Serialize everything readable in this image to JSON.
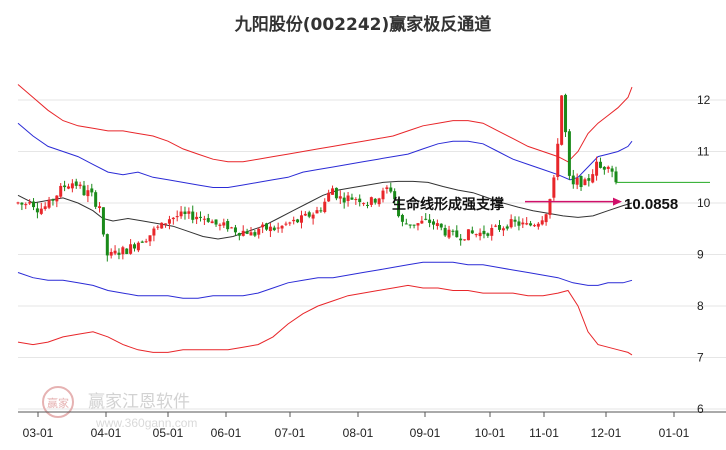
{
  "chart_data": {
    "type": "candlestick",
    "title": "九阳股份(002242)赢家极反通道",
    "x_tick_labels": [
      "03-01",
      "04-01",
      "05-01",
      "06-01",
      "07-01",
      "08-01",
      "09-01",
      "10-01",
      "11-01",
      "12-01",
      "01-01"
    ],
    "y_tick_labels": [
      "12",
      "11",
      "10",
      "9",
      "8",
      "7",
      "6"
    ],
    "ylim": [
      6,
      12.6
    ],
    "annotation": {
      "label": "生命线形成强支撑",
      "value": "10.0858",
      "value_num": 10.0858
    },
    "colors": {
      "up": "#e8262a",
      "down": "#1a8a1a",
      "mid_line": "#333333",
      "inner_band": "#2b2bd6",
      "outer_band": "#e8262a",
      "arrow": "#d0106a",
      "flat_line": "#22aa22"
    },
    "watermark": {
      "name": "赢家江恩软件",
      "url": "www.360gann.com",
      "seal": "赢家"
    },
    "grid": true,
    "legend": "none",
    "mid_line": [
      [
        0,
        10.15
      ],
      [
        15,
        10.0
      ],
      [
        30,
        10.05
      ],
      [
        45,
        10.1
      ],
      [
        60,
        10.0
      ],
      [
        75,
        9.85
      ],
      [
        85,
        9.7
      ],
      [
        95,
        9.65
      ],
      [
        110,
        9.7
      ],
      [
        125,
        9.65
      ],
      [
        140,
        9.6
      ],
      [
        155,
        9.55
      ],
      [
        170,
        9.45
      ],
      [
        185,
        9.35
      ],
      [
        200,
        9.3
      ],
      [
        215,
        9.35
      ],
      [
        230,
        9.45
      ],
      [
        245,
        9.55
      ],
      [
        260,
        9.7
      ],
      [
        275,
        9.85
      ],
      [
        290,
        10.0
      ],
      [
        305,
        10.15
      ],
      [
        320,
        10.25
      ],
      [
        335,
        10.3
      ],
      [
        350,
        10.35
      ],
      [
        365,
        10.4
      ],
      [
        380,
        10.42
      ],
      [
        395,
        10.42
      ],
      [
        410,
        10.4
      ],
      [
        425,
        10.32
      ],
      [
        440,
        10.25
      ],
      [
        455,
        10.2
      ],
      [
        470,
        10.1
      ],
      [
        485,
        10.0
      ],
      [
        500,
        9.92
      ],
      [
        515,
        9.85
      ],
      [
        530,
        9.8
      ],
      [
        545,
        9.75
      ],
      [
        560,
        9.72
      ],
      [
        575,
        9.75
      ],
      [
        590,
        9.85
      ],
      [
        605,
        9.95
      ],
      [
        614,
        10.0
      ]
    ],
    "inner_upper": [
      [
        0,
        11.55
      ],
      [
        15,
        11.3
      ],
      [
        30,
        11.1
      ],
      [
        45,
        11.0
      ],
      [
        60,
        10.9
      ],
      [
        75,
        10.75
      ],
      [
        90,
        10.6
      ],
      [
        105,
        10.55
      ],
      [
        120,
        10.6
      ],
      [
        135,
        10.5
      ],
      [
        150,
        10.45
      ],
      [
        165,
        10.4
      ],
      [
        180,
        10.35
      ],
      [
        195,
        10.3
      ],
      [
        210,
        10.3
      ],
      [
        225,
        10.35
      ],
      [
        240,
        10.4
      ],
      [
        255,
        10.45
      ],
      [
        270,
        10.5
      ],
      [
        285,
        10.6
      ],
      [
        300,
        10.65
      ],
      [
        315,
        10.7
      ],
      [
        330,
        10.75
      ],
      [
        345,
        10.8
      ],
      [
        360,
        10.85
      ],
      [
        375,
        10.9
      ],
      [
        390,
        10.95
      ],
      [
        405,
        11.05
      ],
      [
        420,
        11.15
      ],
      [
        435,
        11.2
      ],
      [
        450,
        11.2
      ],
      [
        465,
        11.15
      ],
      [
        480,
        11.0
      ],
      [
        495,
        10.85
      ],
      [
        510,
        10.75
      ],
      [
        525,
        10.65
      ],
      [
        540,
        10.55
      ],
      [
        552,
        10.45
      ],
      [
        560,
        10.5
      ],
      [
        570,
        10.7
      ],
      [
        580,
        10.9
      ],
      [
        590,
        10.95
      ],
      [
        600,
        11.0
      ],
      [
        610,
        11.1
      ],
      [
        614,
        11.2
      ]
    ],
    "inner_lower": [
      [
        0,
        8.65
      ],
      [
        15,
        8.55
      ],
      [
        30,
        8.5
      ],
      [
        45,
        8.5
      ],
      [
        60,
        8.45
      ],
      [
        75,
        8.4
      ],
      [
        90,
        8.3
      ],
      [
        105,
        8.25
      ],
      [
        120,
        8.2
      ],
      [
        135,
        8.2
      ],
      [
        150,
        8.2
      ],
      [
        165,
        8.15
      ],
      [
        180,
        8.15
      ],
      [
        195,
        8.2
      ],
      [
        210,
        8.2
      ],
      [
        225,
        8.2
      ],
      [
        240,
        8.25
      ],
      [
        255,
        8.35
      ],
      [
        270,
        8.45
      ],
      [
        285,
        8.5
      ],
      [
        300,
        8.55
      ],
      [
        315,
        8.55
      ],
      [
        330,
        8.6
      ],
      [
        345,
        8.65
      ],
      [
        360,
        8.7
      ],
      [
        375,
        8.75
      ],
      [
        390,
        8.8
      ],
      [
        405,
        8.85
      ],
      [
        420,
        8.85
      ],
      [
        435,
        8.85
      ],
      [
        450,
        8.8
      ],
      [
        465,
        8.8
      ],
      [
        480,
        8.75
      ],
      [
        495,
        8.7
      ],
      [
        510,
        8.65
      ],
      [
        525,
        8.6
      ],
      [
        540,
        8.55
      ],
      [
        555,
        8.45
      ],
      [
        570,
        8.4
      ],
      [
        580,
        8.4
      ],
      [
        590,
        8.45
      ],
      [
        605,
        8.45
      ],
      [
        614,
        8.5
      ]
    ],
    "outer_upper": [
      [
        0,
        12.3
      ],
      [
        15,
        12.05
      ],
      [
        30,
        11.8
      ],
      [
        45,
        11.6
      ],
      [
        60,
        11.5
      ],
      [
        75,
        11.45
      ],
      [
        90,
        11.4
      ],
      [
        105,
        11.4
      ],
      [
        120,
        11.35
      ],
      [
        135,
        11.3
      ],
      [
        150,
        11.2
      ],
      [
        165,
        11.05
      ],
      [
        180,
        10.95
      ],
      [
        195,
        10.85
      ],
      [
        210,
        10.8
      ],
      [
        225,
        10.8
      ],
      [
        240,
        10.85
      ],
      [
        255,
        10.9
      ],
      [
        270,
        10.95
      ],
      [
        285,
        11.0
      ],
      [
        300,
        11.05
      ],
      [
        315,
        11.1
      ],
      [
        330,
        11.15
      ],
      [
        345,
        11.2
      ],
      [
        360,
        11.25
      ],
      [
        375,
        11.3
      ],
      [
        390,
        11.4
      ],
      [
        405,
        11.5
      ],
      [
        420,
        11.55
      ],
      [
        435,
        11.6
      ],
      [
        450,
        11.6
      ],
      [
        465,
        11.55
      ],
      [
        480,
        11.4
      ],
      [
        495,
        11.25
      ],
      [
        510,
        11.1
      ],
      [
        525,
        11.0
      ],
      [
        540,
        10.9
      ],
      [
        550,
        10.8
      ],
      [
        560,
        11.0
      ],
      [
        570,
        11.35
      ],
      [
        580,
        11.55
      ],
      [
        590,
        11.7
      ],
      [
        600,
        11.85
      ],
      [
        610,
        12.05
      ],
      [
        614,
        12.25
      ]
    ],
    "outer_lower": [
      [
        0,
        7.3
      ],
      [
        15,
        7.25
      ],
      [
        30,
        7.3
      ],
      [
        45,
        7.4
      ],
      [
        60,
        7.45
      ],
      [
        75,
        7.5
      ],
      [
        90,
        7.4
      ],
      [
        105,
        7.25
      ],
      [
        120,
        7.15
      ],
      [
        135,
        7.1
      ],
      [
        150,
        7.1
      ],
      [
        165,
        7.15
      ],
      [
        180,
        7.15
      ],
      [
        195,
        7.15
      ],
      [
        210,
        7.15
      ],
      [
        225,
        7.2
      ],
      [
        240,
        7.25
      ],
      [
        255,
        7.4
      ],
      [
        270,
        7.65
      ],
      [
        285,
        7.85
      ],
      [
        300,
        8.0
      ],
      [
        315,
        8.1
      ],
      [
        330,
        8.2
      ],
      [
        345,
        8.25
      ],
      [
        360,
        8.3
      ],
      [
        375,
        8.35
      ],
      [
        390,
        8.4
      ],
      [
        405,
        8.35
      ],
      [
        420,
        8.35
      ],
      [
        435,
        8.3
      ],
      [
        450,
        8.3
      ],
      [
        465,
        8.25
      ],
      [
        480,
        8.25
      ],
      [
        495,
        8.25
      ],
      [
        510,
        8.2
      ],
      [
        525,
        8.2
      ],
      [
        540,
        8.25
      ],
      [
        550,
        8.3
      ],
      [
        560,
        8.0
      ],
      [
        570,
        7.5
      ],
      [
        580,
        7.25
      ],
      [
        590,
        7.2
      ],
      [
        600,
        7.15
      ],
      [
        610,
        7.1
      ],
      [
        614,
        7.05
      ]
    ],
    "candle_path": [
      [
        0,
        10.0
      ],
      [
        6,
        9.95
      ],
      [
        12,
        10.1
      ],
      [
        18,
        9.9
      ],
      [
        24,
        9.9
      ],
      [
        30,
        9.95
      ],
      [
        36,
        10.1
      ],
      [
        42,
        10.25
      ],
      [
        48,
        10.35
      ],
      [
        54,
        10.4
      ],
      [
        60,
        10.35
      ],
      [
        66,
        10.2
      ],
      [
        72,
        10.2
      ],
      [
        78,
        10.0
      ],
      [
        82,
        9.95
      ],
      [
        86,
        9.2
      ],
      [
        90,
        8.95
      ],
      [
        95,
        9.0
      ],
      [
        100,
        9.05
      ],
      [
        110,
        9.1
      ],
      [
        120,
        9.25
      ],
      [
        130,
        9.35
      ],
      [
        138,
        9.5
      ],
      [
        144,
        9.55
      ],
      [
        150,
        9.7
      ],
      [
        160,
        9.75
      ],
      [
        170,
        9.75
      ],
      [
        180,
        9.75
      ],
      [
        190,
        9.7
      ],
      [
        200,
        9.55
      ],
      [
        210,
        9.55
      ],
      [
        220,
        9.45
      ],
      [
        230,
        9.45
      ],
      [
        235,
        9.35
      ],
      [
        240,
        9.5
      ],
      [
        250,
        9.5
      ],
      [
        260,
        9.5
      ],
      [
        270,
        9.6
      ],
      [
        280,
        9.65
      ],
      [
        290,
        9.75
      ],
      [
        300,
        9.85
      ],
      [
        305,
        9.95
      ],
      [
        310,
        10.15
      ],
      [
        315,
        10.3
      ],
      [
        320,
        10.1
      ],
      [
        330,
        10.1
      ],
      [
        340,
        10.1
      ],
      [
        350,
        10.0
      ],
      [
        360,
        10.1
      ],
      [
        366,
        10.2
      ],
      [
        370,
        10.3
      ],
      [
        374,
        10.25
      ],
      [
        378,
        10.0
      ],
      [
        382,
        9.6
      ],
      [
        390,
        9.6
      ],
      [
        400,
        9.6
      ],
      [
        410,
        9.65
      ],
      [
        420,
        9.55
      ],
      [
        430,
        9.4
      ],
      [
        440,
        9.35
      ],
      [
        450,
        9.4
      ],
      [
        460,
        9.4
      ],
      [
        470,
        9.45
      ],
      [
        480,
        9.5
      ],
      [
        490,
        9.6
      ],
      [
        500,
        9.6
      ],
      [
        510,
        9.55
      ],
      [
        520,
        9.65
      ],
      [
        525,
        9.75
      ],
      [
        530,
        9.9
      ],
      [
        534,
        10.25
      ],
      [
        538,
        10.6
      ],
      [
        540,
        11.3
      ],
      [
        542,
        11.6
      ],
      [
        544,
        12.2
      ],
      [
        546,
        11.5
      ],
      [
        548,
        11.3
      ],
      [
        550,
        10.6
      ],
      [
        552,
        10.4
      ],
      [
        556,
        10.3
      ],
      [
        560,
        10.45
      ],
      [
        566,
        10.35
      ],
      [
        572,
        10.5
      ],
      [
        578,
        10.75
      ],
      [
        584,
        10.65
      ],
      [
        590,
        10.8
      ],
      [
        594,
        10.65
      ],
      [
        598,
        10.4
      ]
    ],
    "flat_line": {
      "value": 10.4,
      "x_start": 598,
      "x_end": 710
    },
    "candle_count": 155
  }
}
